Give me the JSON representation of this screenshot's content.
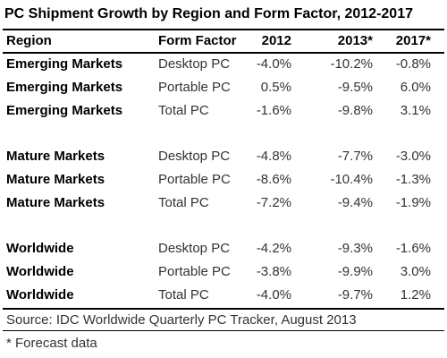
{
  "chart_data": {
    "type": "table",
    "title": "PC Shipment Growth by Region and Form Factor, 2012-2017",
    "columns": [
      "Region",
      "Form Factor",
      "2012",
      "2013*",
      "2017*"
    ],
    "rows": [
      [
        "Emerging Markets",
        "Desktop PC",
        "-4.0%",
        "-10.2%",
        "-0.8%"
      ],
      [
        "Emerging Markets",
        "Portable PC",
        "0.5%",
        "-9.5%",
        "6.0%"
      ],
      [
        "Emerging Markets",
        "Total PC",
        "-1.6%",
        "-9.8%",
        "3.1%"
      ],
      [
        "Mature Markets",
        "Desktop PC",
        "-4.8%",
        "-7.7%",
        "-3.0%"
      ],
      [
        "Mature Markets",
        "Portable PC",
        "-8.6%",
        "-10.4%",
        "-1.3%"
      ],
      [
        "Mature Markets",
        "Total PC",
        "-7.2%",
        "-9.4%",
        "-1.9%"
      ],
      [
        "Worldwide",
        "Desktop PC",
        "-4.2%",
        "-9.3%",
        "-1.6%"
      ],
      [
        "Worldwide",
        "Portable PC",
        "-3.8%",
        "-9.9%",
        "3.0%"
      ],
      [
        "Worldwide",
        "Total PC",
        "-4.0%",
        "-9.7%",
        "1.2%"
      ]
    ],
    "source": "Source: IDC Worldwide Quarterly PC Tracker, August 2013",
    "note": "* Forecast data"
  }
}
